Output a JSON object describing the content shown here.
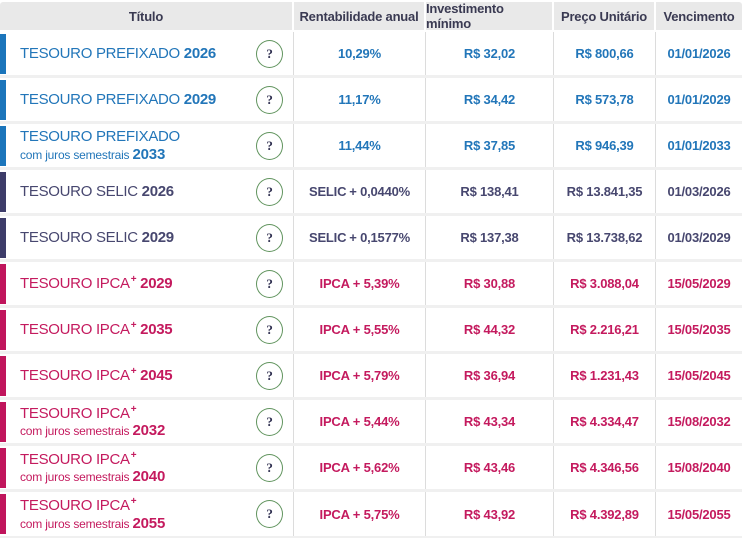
{
  "header": {
    "titulo": "Título",
    "rentabilidade": "Rentabilidade anual",
    "investimento": "Investimento mínimo",
    "preco": "Preço Unitário",
    "vencimento": "Vencimento"
  },
  "help_icon": "?",
  "colors": {
    "prefixado_bar": "#1b75bb",
    "prefixado_text": "#2276b9",
    "selic_bar": "#3d3c69",
    "selic_text": "#47476f",
    "ipca_bar": "#c0155c",
    "ipca_text": "#c41a5e",
    "header_bg": "#e9e9e9",
    "header_text": "#3a3a52",
    "help_circle_border": "#61945e"
  },
  "rows": [
    {
      "color": "blue",
      "title": "TESOURO PREFIXADO",
      "plus": false,
      "subtitle": "",
      "year": "2026",
      "rate_prefix": "",
      "rate": "10,29%",
      "min": "R$ 32,02",
      "price": "R$ 800,66",
      "due": "01/01/2026"
    },
    {
      "color": "blue",
      "title": "TESOURO PREFIXADO",
      "plus": false,
      "subtitle": "",
      "year": "2029",
      "rate_prefix": "",
      "rate": "11,17%",
      "min": "R$ 34,42",
      "price": "R$ 573,78",
      "due": "01/01/2029"
    },
    {
      "color": "blue",
      "title": "TESOURO PREFIXADO",
      "plus": false,
      "subtitle": "com juros semestrais",
      "year": "2033",
      "rate_prefix": "",
      "rate": "11,44%",
      "min": "R$ 37,85",
      "price": "R$ 946,39",
      "due": "01/01/2033"
    },
    {
      "color": "navy",
      "title": "TESOURO SELIC",
      "plus": false,
      "subtitle": "",
      "year": "2026",
      "rate_prefix": "SELIC",
      "rate": "+ 0,0440%",
      "min": "R$ 138,41",
      "price": "R$ 13.841,35",
      "due": "01/03/2026"
    },
    {
      "color": "navy",
      "title": "TESOURO SELIC",
      "plus": false,
      "subtitle": "",
      "year": "2029",
      "rate_prefix": "SELIC",
      "rate": "+ 0,1577%",
      "min": "R$ 137,38",
      "price": "R$ 13.738,62",
      "due": "01/03/2029"
    },
    {
      "color": "pink",
      "title": "TESOURO IPCA",
      "plus": true,
      "subtitle": "",
      "year": "2029",
      "rate_prefix": "IPCA",
      "rate": "+ 5,39%",
      "min": "R$ 30,88",
      "price": "R$ 3.088,04",
      "due": "15/05/2029"
    },
    {
      "color": "pink",
      "title": "TESOURO IPCA",
      "plus": true,
      "subtitle": "",
      "year": "2035",
      "rate_prefix": "IPCA",
      "rate": "+ 5,55%",
      "min": "R$ 44,32",
      "price": "R$ 2.216,21",
      "due": "15/05/2035"
    },
    {
      "color": "pink",
      "title": "TESOURO IPCA",
      "plus": true,
      "subtitle": "",
      "year": "2045",
      "rate_prefix": "IPCA",
      "rate": "+ 5,79%",
      "min": "R$ 36,94",
      "price": "R$ 1.231,43",
      "due": "15/05/2045"
    },
    {
      "color": "pink",
      "title": "TESOURO IPCA",
      "plus": true,
      "subtitle": "com juros semestrais",
      "year": "2032",
      "rate_prefix": "IPCA",
      "rate": "+ 5,44%",
      "min": "R$ 43,34",
      "price": "R$ 4.334,47",
      "due": "15/08/2032"
    },
    {
      "color": "pink",
      "title": "TESOURO IPCA",
      "plus": true,
      "subtitle": "com juros semestrais",
      "year": "2040",
      "rate_prefix": "IPCA",
      "rate": "+ 5,62%",
      "min": "R$ 43,46",
      "price": "R$ 4.346,56",
      "due": "15/08/2040"
    },
    {
      "color": "pink",
      "title": "TESOURO IPCA",
      "plus": true,
      "subtitle": "com juros semestrais",
      "year": "2055",
      "rate_prefix": "IPCA",
      "rate": "+ 5,75%",
      "min": "R$ 43,92",
      "price": "R$ 4.392,89",
      "due": "15/05/2055"
    }
  ]
}
